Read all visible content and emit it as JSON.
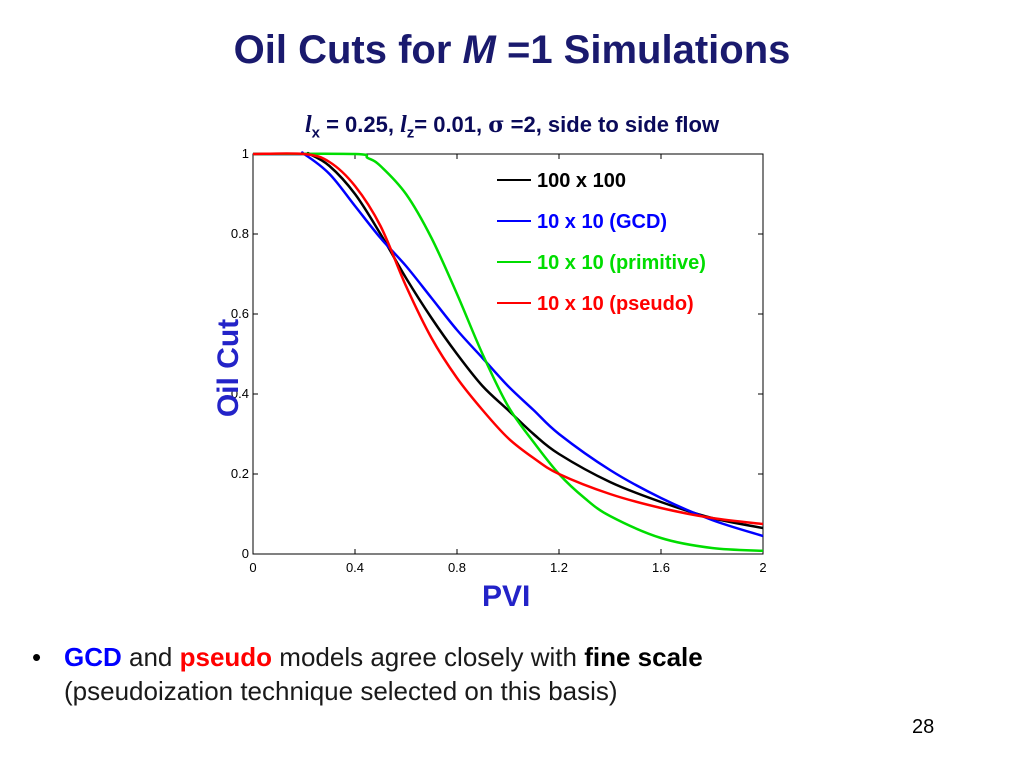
{
  "slide": {
    "title_pre": "Oil Cuts for ",
    "title_ital": "M",
    "title_post": " =1 Simulations",
    "subtitle": {
      "l1": "l",
      "s1": "x",
      "t1": " = 0.25, ",
      "l2": "l",
      "s2": "z",
      "t2": "= 0.01, ",
      "sigma": "σ",
      "t3": " =2, side to side flow"
    },
    "bullet_symbol": "•",
    "bullet": {
      "gcd": "GCD",
      "t1": " and ",
      "pseudo": "pseudo",
      "t2": " models agree closely with ",
      "fine": "fine scale",
      "t3": "(pseudoization technique selected on this basis)"
    },
    "page_number": "28"
  },
  "chart_data": {
    "type": "line",
    "xlabel": "PVI",
    "ylabel": "Oil Cut",
    "xlim": [
      0,
      2
    ],
    "ylim": [
      0,
      1
    ],
    "xticks": [
      "0",
      "0.4",
      "0.8",
      "1.2",
      "1.6",
      "2"
    ],
    "yticks": [
      "0",
      "0.2",
      "0.4",
      "0.6",
      "0.8",
      "1"
    ],
    "legend_position": "top-right",
    "grid": false,
    "series": [
      {
        "name": "100 x 100",
        "color": "#000000",
        "x": [
          0,
          0.2,
          0.22,
          0.3,
          0.4,
          0.5,
          0.6,
          0.7,
          0.8,
          0.9,
          1.0,
          1.1,
          1.2,
          1.4,
          1.6,
          1.8,
          2.0
        ],
        "y": [
          1,
          1,
          1,
          0.97,
          0.9,
          0.8,
          0.69,
          0.59,
          0.5,
          0.42,
          0.36,
          0.3,
          0.25,
          0.18,
          0.13,
          0.09,
          0.065
        ]
      },
      {
        "name": "10 x 10 (GCD)",
        "color": "#0000ff",
        "x": [
          0,
          0.18,
          0.2,
          0.3,
          0.4,
          0.5,
          0.6,
          0.7,
          0.8,
          0.9,
          1.0,
          1.1,
          1.2,
          1.4,
          1.6,
          1.8,
          2.0
        ],
        "y": [
          1,
          1,
          1,
          0.95,
          0.87,
          0.79,
          0.72,
          0.64,
          0.56,
          0.49,
          0.42,
          0.36,
          0.3,
          0.21,
          0.14,
          0.085,
          0.045
        ]
      },
      {
        "name": "10 x 10 (primitive)",
        "color": "#00dd00",
        "x": [
          0,
          0.4,
          0.45,
          0.5,
          0.6,
          0.7,
          0.8,
          0.9,
          1.0,
          1.1,
          1.2,
          1.3,
          1.4,
          1.6,
          1.8,
          2.0
        ],
        "y": [
          1,
          1,
          0.99,
          0.97,
          0.9,
          0.79,
          0.65,
          0.5,
          0.37,
          0.28,
          0.2,
          0.14,
          0.095,
          0.04,
          0.015,
          0.008
        ]
      },
      {
        "name": "10 x 10 (pseudo)",
        "color": "#ff0000",
        "x": [
          0,
          0.2,
          0.3,
          0.4,
          0.5,
          0.6,
          0.7,
          0.8,
          0.9,
          1.0,
          1.1,
          1.2,
          1.4,
          1.6,
          1.8,
          2.0
        ],
        "y": [
          1,
          1,
          0.98,
          0.92,
          0.82,
          0.67,
          0.54,
          0.44,
          0.36,
          0.29,
          0.24,
          0.2,
          0.15,
          0.115,
          0.09,
          0.075
        ]
      }
    ]
  }
}
